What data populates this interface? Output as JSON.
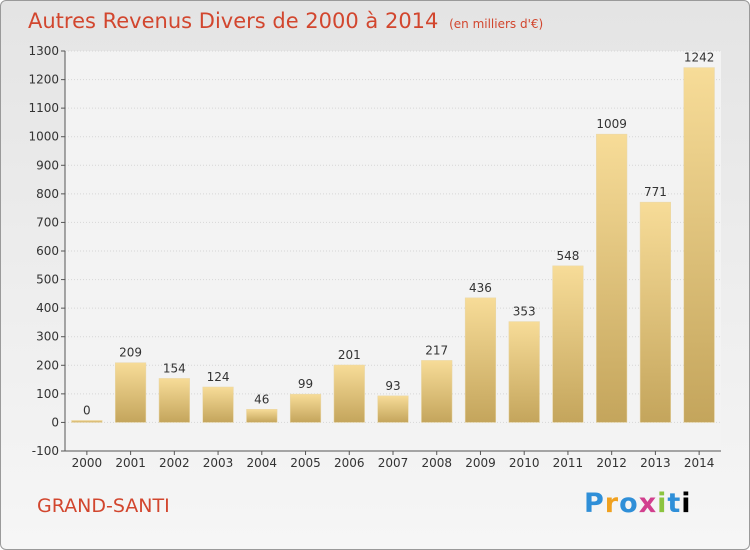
{
  "title": "Autres Revenus Divers de 2000 à 2014",
  "subtitle": "(en milliers d'€)",
  "place": "GRAND-SANTI",
  "logo": "Proxiti",
  "colors": {
    "title": "#d2462e",
    "bar_light": "#f7dc98",
    "bar_dark": "#c4a55c"
  },
  "chart_data": {
    "type": "bar",
    "categories": [
      "2000",
      "2001",
      "2002",
      "2003",
      "2004",
      "2005",
      "2006",
      "2007",
      "2008",
      "2009",
      "2010",
      "2011",
      "2012",
      "2013",
      "2014"
    ],
    "values": [
      0,
      209,
      154,
      124,
      46,
      99,
      201,
      93,
      217,
      436,
      353,
      548,
      1009,
      771,
      1242
    ],
    "ylim": [
      -100,
      1300
    ],
    "yticks": [
      -100,
      0,
      100,
      200,
      300,
      400,
      500,
      600,
      700,
      800,
      900,
      1000,
      1100,
      1200,
      1300
    ],
    "grid": true,
    "data_labels": true
  }
}
